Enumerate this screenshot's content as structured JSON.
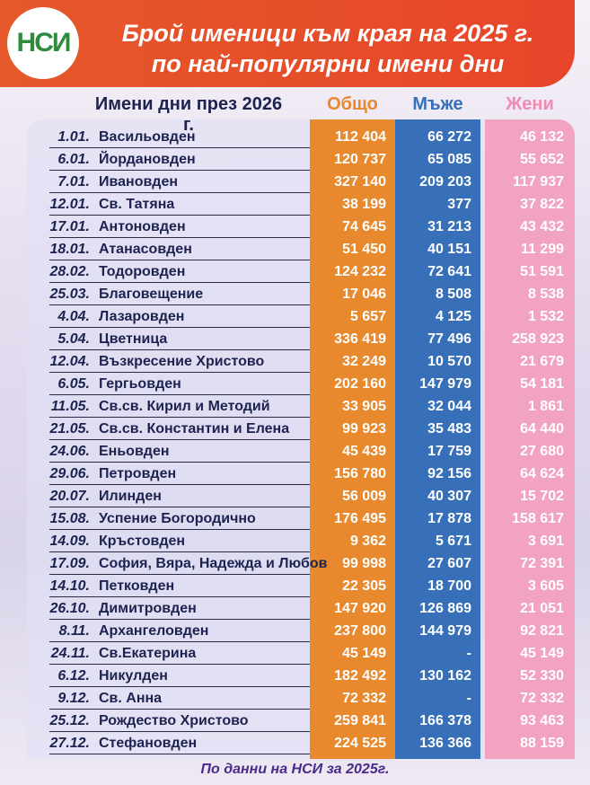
{
  "header": {
    "logo": "НСИ",
    "title_lines": [
      "Брой именици към края на 2025 г.",
      "по най-популярни имени дни"
    ]
  },
  "table": {
    "columns": [
      "Имени дни през 2026 г.",
      "Общо",
      "Мъже",
      "Жени"
    ],
    "rows": [
      [
        "1.01.",
        "Васильовден",
        "112 404",
        "66 272",
        "46 132"
      ],
      [
        "6.01.",
        "Йордановден",
        "120 737",
        "65 085",
        "55 652"
      ],
      [
        "7.01.",
        "Ивановден",
        "327 140",
        "209 203",
        "117 937"
      ],
      [
        "12.01.",
        "Св. Татяна",
        "38 199",
        "377",
        "37 822"
      ],
      [
        "17.01.",
        "Антоновден",
        "74 645",
        "31 213",
        "43 432"
      ],
      [
        "18.01.",
        "Атанасовден",
        "51 450",
        "40 151",
        "11 299"
      ],
      [
        "28.02.",
        "Тодоровден",
        "124 232",
        "72 641",
        "51 591"
      ],
      [
        "25.03.",
        "Благовещение",
        "17 046",
        "8 508",
        "8 538"
      ],
      [
        "4.04.",
        "Лазаровден",
        "5 657",
        "4 125",
        "1 532"
      ],
      [
        "5.04.",
        "Цветница",
        "336 419",
        "77 496",
        "258 923"
      ],
      [
        "12.04.",
        "Възкресение Христово",
        "32 249",
        "10 570",
        "21 679"
      ],
      [
        "6.05.",
        "Гергьовден",
        "202 160",
        "147 979",
        "54 181"
      ],
      [
        "11.05.",
        "Св.св. Кирил и Методий",
        "33 905",
        "32 044",
        "1 861"
      ],
      [
        "21.05.",
        "Св.св. Константин и Елена",
        "99 923",
        "35 483",
        "64 440"
      ],
      [
        "24.06.",
        "Еньовден",
        "45 439",
        "17 759",
        "27 680"
      ],
      [
        "29.06.",
        "Петровден",
        "156 780",
        "92 156",
        "64 624"
      ],
      [
        "20.07.",
        "Илинден",
        "56 009",
        "40 307",
        "15 702"
      ],
      [
        "15.08.",
        "Успение Богородично",
        "176 495",
        "17 878",
        "158 617"
      ],
      [
        "14.09.",
        "Кръстовден",
        "9 362",
        "5 671",
        "3 691"
      ],
      [
        "17.09.",
        "София, Вяра, Надежда и Любов",
        "99 998",
        "27 607",
        "72 391"
      ],
      [
        "14.10.",
        "Петковден",
        "22 305",
        "18 700",
        "3 605"
      ],
      [
        "26.10.",
        "Димитровден",
        "147 920",
        "126 869",
        "21 051"
      ],
      [
        "8.11.",
        "Архангеловден",
        "237 800",
        "144 979",
        "92 821"
      ],
      [
        "24.11.",
        "Св.Екатерина",
        "45 149",
        "-",
        "45 149"
      ],
      [
        "6.12.",
        "Никулден",
        "182 492",
        "130 162",
        "52 330"
      ],
      [
        "9.12.",
        "Св. Анна",
        "72 332",
        "-",
        "72 332"
      ],
      [
        "25.12.",
        "Рождество Христово",
        "259 841",
        "166 378",
        "93 463"
      ],
      [
        "27.12.",
        "Стефановден",
        "224 525",
        "136 366",
        "88 159"
      ]
    ]
  },
  "footer": "По данни на НСИ за 2025г."
}
